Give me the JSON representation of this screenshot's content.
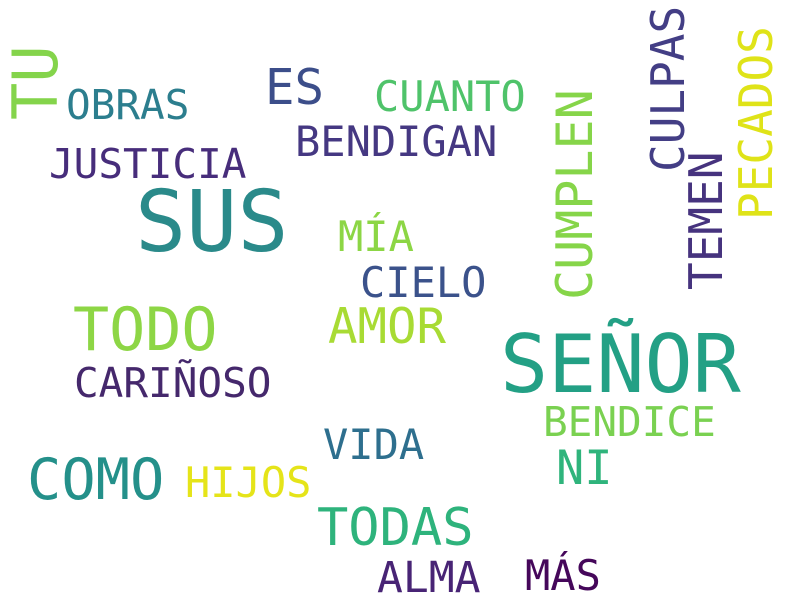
{
  "words": {
    "sus": {
      "text": "SUS",
      "color": "#2a8a8a"
    },
    "senor": {
      "text": "SEÑOR",
      "color": "#23a085"
    },
    "como": {
      "text": "COMO",
      "color": "#24908a"
    },
    "todo": {
      "text": "TODO",
      "color": "#8dd645"
    },
    "todas": {
      "text": "TODAS",
      "color": "#2eb37c"
    },
    "amor": {
      "text": "AMOR",
      "color": "#a8db34"
    },
    "es": {
      "text": "ES",
      "color": "#3c4e8a"
    },
    "ni": {
      "text": "NI",
      "color": "#2fb47c"
    },
    "alma": {
      "text": "ALMA",
      "color": "#482475"
    },
    "mas": {
      "text": "MÁS",
      "color": "#45075a"
    },
    "bendigan": {
      "text": "BENDIGAN",
      "color": "#453882"
    },
    "carinoso": {
      "text": "CARIÑOSO",
      "color": "#45286c"
    },
    "obras": {
      "text": "OBRAS",
      "color": "#2c7e8e"
    },
    "cuanto": {
      "text": "CUANTO",
      "color": "#4fc36a"
    },
    "bendice": {
      "text": "BENDICE",
      "color": "#7ad151"
    },
    "vida": {
      "text": "VIDA",
      "color": "#2e6f8e"
    },
    "cielo": {
      "text": "CIELO",
      "color": "#3b528b"
    },
    "mia": {
      "text": "MÍA",
      "color": "#8cd645"
    },
    "justicia": {
      "text": "JUSTICIA",
      "color": "#472d7b"
    },
    "hijos": {
      "text": "HIJOS",
      "color": "#e5e419"
    },
    "tu": {
      "text": "TU",
      "color": "#84d44b"
    },
    "cumplen": {
      "text": "CUMPLEN",
      "color": "#86d549"
    },
    "culpas": {
      "text": "CULPAS",
      "color": "#433e85"
    },
    "temen": {
      "text": "TEMEN",
      "color": "#46337e"
    },
    "pecados": {
      "text": "PECADOS",
      "color": "#dfe318"
    }
  }
}
